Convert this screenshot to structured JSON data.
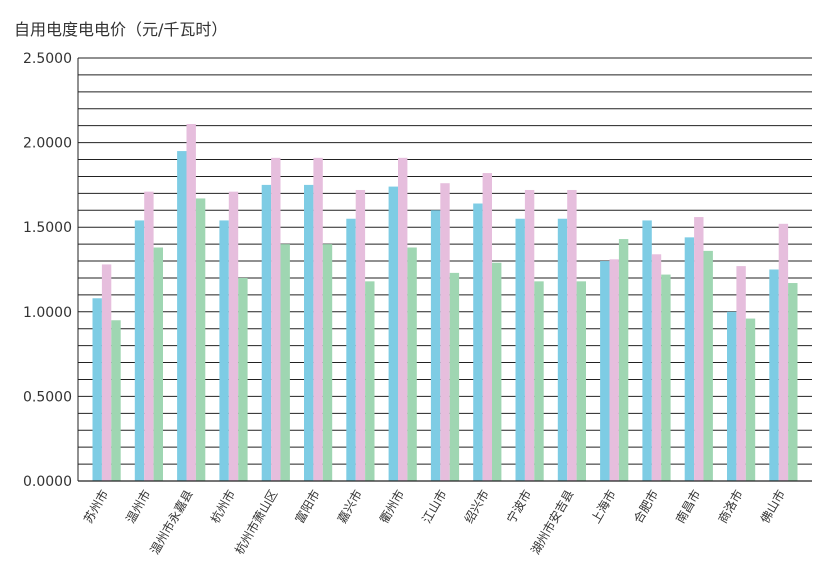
{
  "chart_data": {
    "type": "bar",
    "title": "自用电度电电价（元/千瓦时）",
    "xlabel": "",
    "ylabel": "",
    "ylim": [
      0,
      2.5
    ],
    "yticks": [
      "0.0000",
      "0.5000",
      "1.0000",
      "1.5000",
      "2.0000",
      "2.5000"
    ],
    "grid": true,
    "legend": "none",
    "categories": [
      "苏州市",
      "温州市",
      "温州市永嘉县",
      "杭州市",
      "杭州市萧山区",
      "富阳市",
      "嘉兴市",
      "衢州市",
      "江山市",
      "绍兴市",
      "宁波市",
      "湖州市安吉县",
      "上海市",
      "合肥市",
      "南昌市",
      "商洛市",
      "佛山市"
    ],
    "series": [
      {
        "color": "#7ecce4",
        "values": [
          1.08,
          1.54,
          1.95,
          1.54,
          1.75,
          1.75,
          1.55,
          1.74,
          1.6,
          1.64,
          1.55,
          1.55,
          1.3,
          1.54,
          1.44,
          1.0,
          1.25
        ]
      },
      {
        "color": "#e6bedd",
        "values": [
          1.28,
          1.71,
          2.11,
          1.71,
          1.91,
          1.91,
          1.72,
          1.91,
          1.76,
          1.82,
          1.72,
          1.72,
          1.31,
          1.34,
          1.56,
          1.27,
          1.52
        ]
      },
      {
        "color": "#9fd6b2",
        "values": [
          0.95,
          1.38,
          1.67,
          1.2,
          1.4,
          1.4,
          1.18,
          1.38,
          1.23,
          1.29,
          1.18,
          1.18,
          1.43,
          1.22,
          1.36,
          0.96,
          1.17
        ]
      }
    ]
  }
}
